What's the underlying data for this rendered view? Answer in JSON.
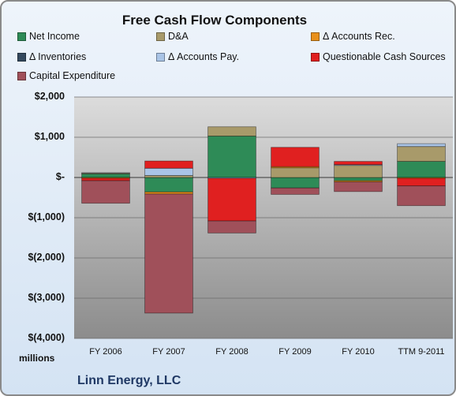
{
  "chart_data": {
    "type": "bar",
    "stacked": true,
    "title": "Free Cash Flow Components",
    "categories": [
      "FY 2006",
      "FY 2007",
      "FY 2008",
      "FY 2009",
      "FY 2010",
      "TTM 9-2011"
    ],
    "ylim": [
      -4000,
      2000
    ],
    "yticks": [
      {
        "value": 2000,
        "label": "$2,000"
      },
      {
        "value": 1000,
        "label": "$1,000"
      },
      {
        "value": 0,
        "label": "$-"
      },
      {
        "value": -1000,
        "label": "$(1,000)"
      },
      {
        "value": -2000,
        "label": "$(2,000)"
      },
      {
        "value": -3000,
        "label": "$(3,000)"
      },
      {
        "value": -4000,
        "label": "$(4,000)"
      }
    ],
    "y_unit_label": "millions",
    "grid": true,
    "legend_position": "top",
    "series": [
      {
        "name": "Net Income",
        "color": "#2e8b57",
        "values": [
          90,
          -360,
          1030,
          -260,
          -80,
          400
        ]
      },
      {
        "name": "D&A",
        "color": "#a89a6a",
        "values": [
          20,
          50,
          230,
          240,
          300,
          370
        ]
      },
      {
        "name": "Δ Accounts Rec.",
        "color": "#e8901a",
        "values": [
          -20,
          -50,
          0,
          30,
          -30,
          -20
        ]
      },
      {
        "name": "Δ Inventories",
        "color": "#34495e",
        "values": [
          0,
          0,
          0,
          0,
          0,
          0
        ]
      },
      {
        "name": "Δ Accounts Pay.",
        "color": "#a9c4e6",
        "values": [
          10,
          180,
          -20,
          0,
          20,
          70
        ]
      },
      {
        "name": "Questionable Cash Sources",
        "color": "#e02020",
        "values": [
          -60,
          180,
          -1060,
          480,
          80,
          -190
        ]
      },
      {
        "name": "Capital Expenditure",
        "color": "#a0505a",
        "values": [
          -560,
          -2960,
          -300,
          -160,
          -240,
          -490
        ]
      }
    ]
  },
  "footer_text": "Linn Energy, LLC"
}
